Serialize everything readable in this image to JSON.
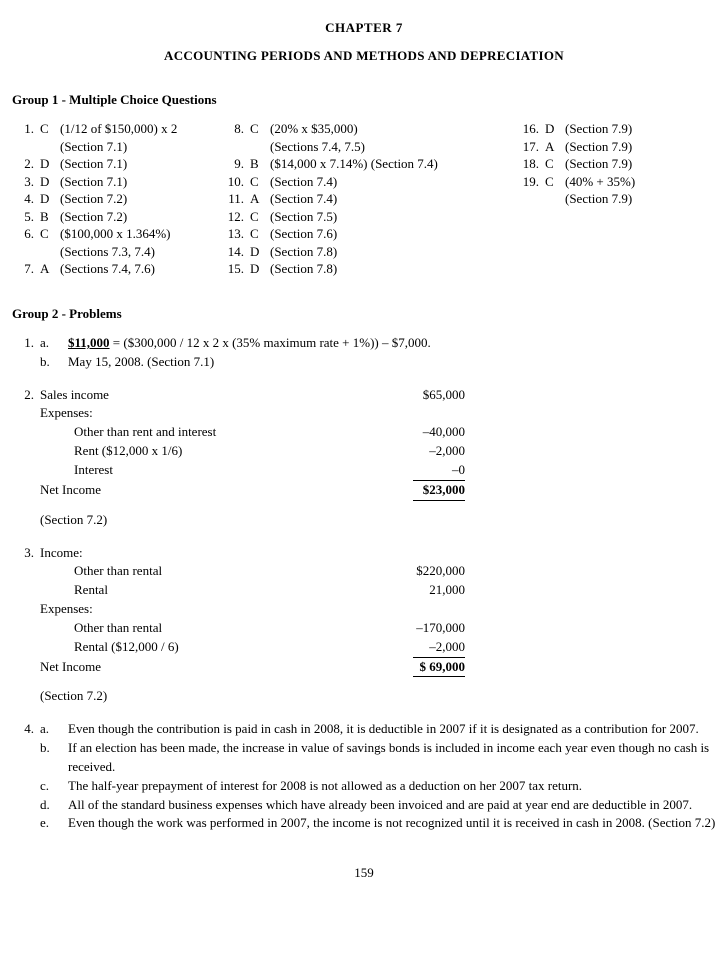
{
  "chapter_label": "CHAPTER 7",
  "title": "ACCOUNTING PERIODS AND METHODS AND DEPRECIATION",
  "page_number": "159",
  "group1_head": "Group 1 - Multiple Choice Questions",
  "group2_head": "Group 2 - Problems",
  "mc": {
    "col1": [
      {
        "n": "1.",
        "a": "C",
        "d": "(1/12 of $150,000) x 2"
      },
      {
        "n": "",
        "a": "",
        "d": "(Section 7.1)"
      },
      {
        "n": "2.",
        "a": "D",
        "d": "(Section 7.1)"
      },
      {
        "n": "3.",
        "a": "D",
        "d": "(Section 7.1)"
      },
      {
        "n": "4.",
        "a": "D",
        "d": "(Section 7.2)"
      },
      {
        "n": "5.",
        "a": "B",
        "d": "(Section 7.2)"
      },
      {
        "n": "6.",
        "a": "C",
        "d": "($100,000 x 1.364%)"
      },
      {
        "n": "",
        "a": "",
        "d": "(Sections 7.3, 7.4)"
      },
      {
        "n": "7.",
        "a": "A",
        "d": "(Sections 7.4, 7.6)"
      }
    ],
    "col2": [
      {
        "n": "8.",
        "a": "C",
        "d": "(20% x $35,000)"
      },
      {
        "n": "",
        "a": "",
        "d": "(Sections 7.4, 7.5)"
      },
      {
        "n": "9.",
        "a": "B",
        "d": "($14,000 x 7.14%) (Section 7.4)"
      },
      {
        "n": "10.",
        "a": "C",
        "d": "(Section 7.4)"
      },
      {
        "n": "11.",
        "a": "A",
        "d": "(Section 7.4)"
      },
      {
        "n": "12.",
        "a": "C",
        "d": "(Section 7.5)"
      },
      {
        "n": "13.",
        "a": "C",
        "d": "(Section 7.6)"
      },
      {
        "n": "14.",
        "a": "D",
        "d": "(Section 7.8)"
      },
      {
        "n": "15.",
        "a": "D",
        "d": "(Section 7.8)"
      }
    ],
    "col3": [
      {
        "n": "16.",
        "a": "D",
        "d": "(Section 7.9)"
      },
      {
        "n": "17.",
        "a": "A",
        "d": "(Section 7.9)"
      },
      {
        "n": "18.",
        "a": "C",
        "d": "(Section 7.9)"
      },
      {
        "n": "19.",
        "a": "C",
        "d": "(40% + 35%)"
      },
      {
        "n": "",
        "a": "",
        "d": "(Section 7.9)"
      }
    ]
  },
  "p1": {
    "n": "1.",
    "a_label": "a.",
    "a_text_prefix": "$11,000",
    "a_text_rest": " = ($300,000 / 12 x 2 x (35% maximum rate + 1%)) – $7,000.",
    "b_label": "b.",
    "b_text": "May 15, 2008.  (Section 7.1)"
  },
  "p2": {
    "n": "2.",
    "rows": [
      {
        "label": "Sales income",
        "val": "$65,000",
        "indent": 0
      },
      {
        "label": "Expenses:",
        "val": "",
        "indent": 0
      },
      {
        "label": "Other than rent and interest",
        "val": "–40,000",
        "indent": 1
      },
      {
        "label": "Rent ($12,000 x 1/6)",
        "val": "–2,000",
        "indent": 1
      },
      {
        "label": "Interest",
        "val": "–0",
        "indent": 1,
        "underline": true
      },
      {
        "label": "Net Income",
        "val": "$23,000",
        "indent": 0,
        "bold_val": true,
        "underline": true
      }
    ],
    "section": "(Section 7.2)"
  },
  "p3": {
    "n": "3.",
    "rows": [
      {
        "label": "Income:",
        "val": "",
        "indent": 0
      },
      {
        "label": "Other than rental",
        "val": "$220,000",
        "indent": 1
      },
      {
        "label": "Rental",
        "val": "21,000",
        "indent": 1
      },
      {
        "label": "Expenses:",
        "val": "",
        "indent": 0
      },
      {
        "label": "Other than rental",
        "val": "–170,000",
        "indent": 1
      },
      {
        "label": "Rental ($12,000 / 6)",
        "val": "–2,000",
        "indent": 1,
        "underline": true
      },
      {
        "label": "Net Income",
        "val": "$  69,000",
        "indent": 0,
        "bold_val": true,
        "underline": true
      }
    ],
    "section": "(Section 7.2)"
  },
  "p4": {
    "n": "4.",
    "items": [
      {
        "l": "a.",
        "t": "Even though the contribution is paid in cash in 2008, it is deductible in 2007 if it is designated as a contribution for 2007."
      },
      {
        "l": "b.",
        "t": "If an election has been made, the increase in value of savings bonds is included in income each year even though no cash is received."
      },
      {
        "l": "c.",
        "t": "The half-year prepayment of interest for 2008 is not allowed as a deduction on her 2007 tax return."
      },
      {
        "l": "d.",
        "t": "All of the standard business expenses which have already been invoiced and are paid at year end are deductible in 2007."
      },
      {
        "l": "e.",
        "t": "Even though the work was performed in 2007, the income is not recognized until it is received in cash in 2008.  (Section 7.2)"
      }
    ]
  }
}
